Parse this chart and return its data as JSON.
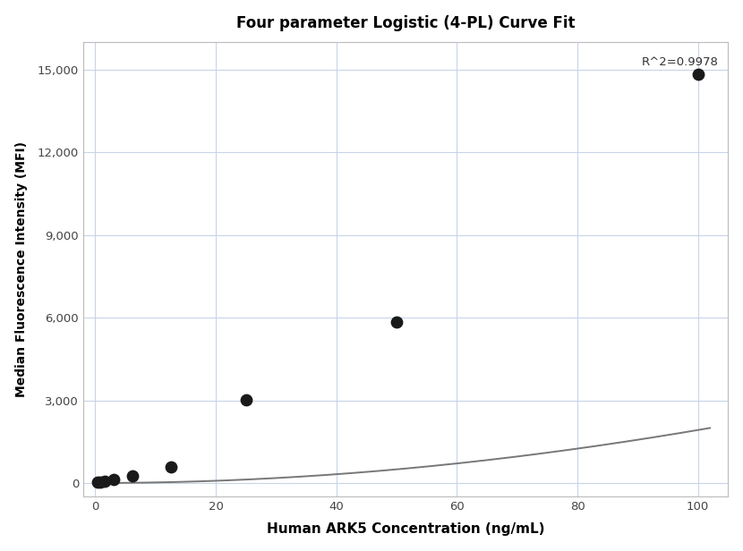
{
  "title": "Four parameter Logistic (4-PL) Curve Fit",
  "xlabel": "Human ARK5 Concentration (ng/mL)",
  "ylabel": "Median Fluorescence Intensity (MFI)",
  "r_squared": "R^2=0.9978",
  "scatter_x": [
    0.4,
    0.78,
    1.56,
    3.13,
    6.25,
    12.5,
    25,
    50,
    100
  ],
  "scatter_y": [
    20,
    40,
    75,
    130,
    270,
    580,
    3010,
    5850,
    14850
  ],
  "xlim": [
    -2,
    105
  ],
  "ylim": [
    -500,
    16000
  ],
  "yticks": [
    0,
    3000,
    6000,
    9000,
    12000,
    15000
  ],
  "xticks": [
    0,
    20,
    40,
    60,
    80,
    100
  ],
  "scatter_color": "#1a1a1a",
  "scatter_size": 80,
  "line_color": "#777777",
  "line_width": 1.4,
  "grid_color": "#c8d4e8",
  "background_color": "#ffffff"
}
